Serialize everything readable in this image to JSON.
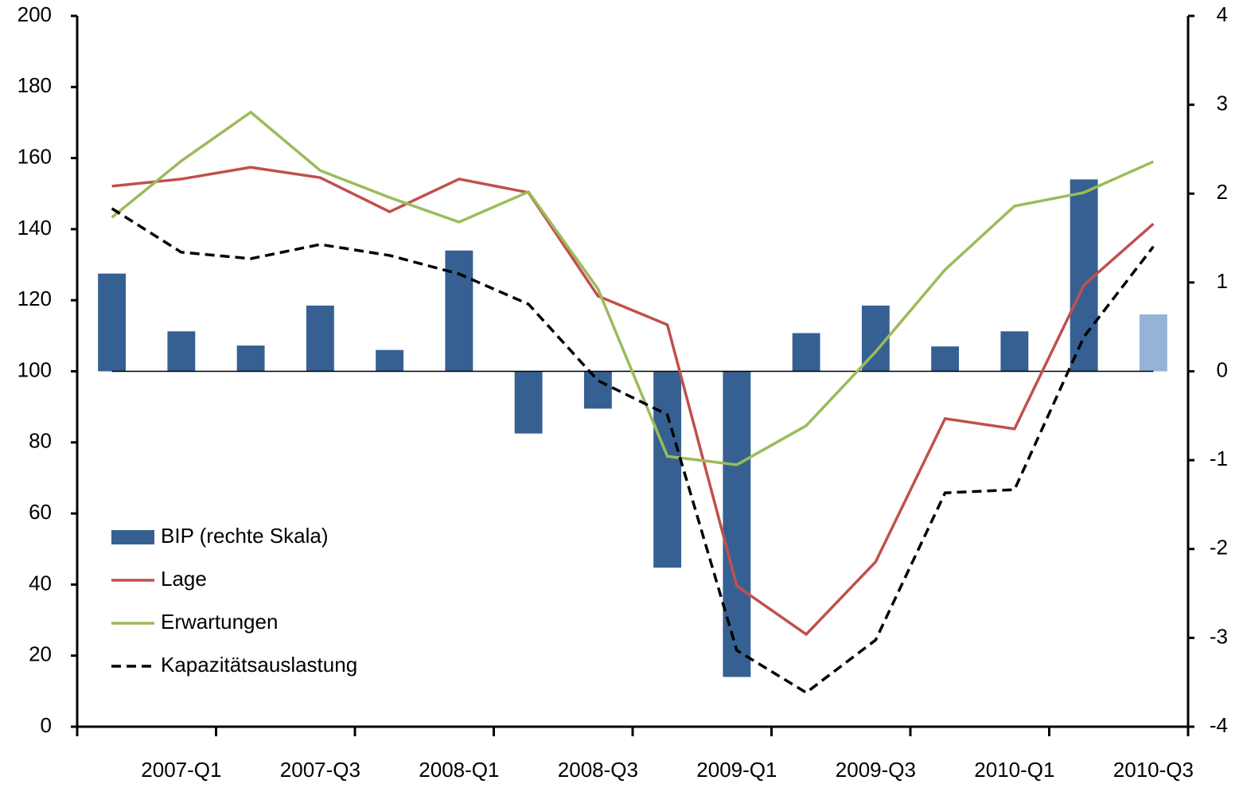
{
  "chart_data": {
    "type": "bar-line",
    "categories": [
      null,
      "2007-Q1",
      null,
      "2007-Q3",
      null,
      "2008-Q1",
      null,
      "2008-Q3",
      null,
      "2009-Q1",
      null,
      "2009-Q3",
      null,
      "2010-Q1",
      null,
      "2010-Q3"
    ],
    "series": [
      {
        "name": "BIP (rechte Skala)",
        "type": "bar",
        "axis": "y2",
        "color": "#366092",
        "colors": [
          "#366092",
          "#366092",
          "#366092",
          "#366092",
          "#366092",
          "#366092",
          "#366092",
          "#366092",
          "#366092",
          "#366092",
          "#366092",
          "#366092",
          "#366092",
          "#366092",
          "#366092",
          "#95b3d7"
        ],
        "values": [
          1.1,
          0.45,
          0.29,
          0.74,
          0.24,
          1.36,
          -0.7,
          -0.42,
          -2.21,
          -3.44,
          0.43,
          0.74,
          0.28,
          0.45,
          2.16,
          0.64
        ]
      },
      {
        "name": "Lage",
        "type": "line",
        "color": "#c0504d",
        "dash": false,
        "values": [
          152.1,
          154.1,
          157.4,
          154.5,
          144.9,
          154.1,
          150.3,
          121.2,
          113.1,
          39.6,
          26.0,
          46.4,
          86.7,
          83.8,
          124.3,
          141.5
        ]
      },
      {
        "name": "Erwartungen",
        "type": "line",
        "color": "#9bbb59",
        "dash": false,
        "values": [
          143.3,
          159.2,
          172.9,
          156.5,
          148.9,
          142.0,
          150.5,
          123.2,
          76.1,
          73.7,
          84.7,
          105.5,
          128.6,
          146.5,
          150.3,
          159.0
        ]
      },
      {
        "name": "Kapazitätsauslastung",
        "type": "line",
        "color": "#000000",
        "dash": true,
        "values": [
          145.8,
          133.5,
          131.7,
          135.7,
          132.6,
          127.4,
          118.9,
          97.4,
          87.8,
          21.5,
          9.6,
          24.4,
          65.8,
          66.7,
          109.7,
          135.1
        ]
      }
    ],
    "ylim": [
      0,
      200
    ],
    "yticks": [
      0,
      20,
      40,
      60,
      80,
      100,
      120,
      140,
      160,
      180,
      200
    ],
    "y2lim": [
      -4,
      4
    ],
    "y2ticks": [
      -4,
      -3,
      -2,
      -1,
      0,
      1,
      2,
      3,
      4
    ],
    "legend": "lower-left",
    "grid": false
  }
}
